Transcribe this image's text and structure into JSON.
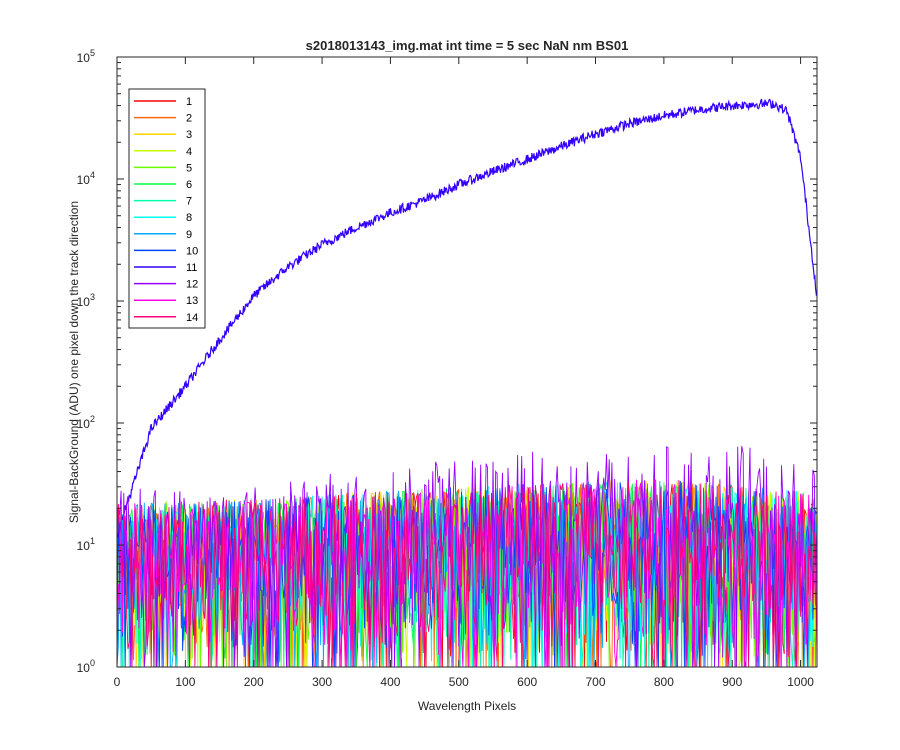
{
  "chart_data": {
    "type": "line",
    "title": "s2018013143_img.mat int time = 5 sec  NaN nm BS01",
    "xlabel": "Wavelength Pixels",
    "ylabel": "Signal-BackGround (ADU) one pixel down the track direction",
    "x_range": [
      0,
      1024
    ],
    "y_range": [
      1,
      100000
    ],
    "y_scale": "log",
    "grid": false,
    "legend_position": "top-left",
    "x_ticks": [
      {
        "v": 0,
        "label": "0"
      },
      {
        "v": 100,
        "label": "100"
      },
      {
        "v": 200,
        "label": "200"
      },
      {
        "v": 300,
        "label": "300"
      },
      {
        "v": 400,
        "label": "400"
      },
      {
        "v": 500,
        "label": "500"
      },
      {
        "v": 600,
        "label": "600"
      },
      {
        "v": 700,
        "label": "700"
      },
      {
        "v": 800,
        "label": "800"
      },
      {
        "v": 900,
        "label": "900"
      },
      {
        "v": 1000,
        "label": "1000"
      }
    ],
    "y_ticks": [
      {
        "v": 1,
        "base": "10",
        "exp": "0"
      },
      {
        "v": 10,
        "base": "10",
        "exp": "1"
      },
      {
        "v": 100,
        "base": "10",
        "exp": "2"
      },
      {
        "v": 1000,
        "base": "10",
        "exp": "3"
      },
      {
        "v": 10000,
        "base": "10",
        "exp": "4"
      },
      {
        "v": 100000,
        "base": "10",
        "exp": "5"
      }
    ],
    "series": [
      {
        "name": "1",
        "color": "#ff0000"
      },
      {
        "name": "2",
        "color": "#ff6a00"
      },
      {
        "name": "3",
        "color": "#ffd400"
      },
      {
        "name": "4",
        "color": "#c8ff00"
      },
      {
        "name": "5",
        "color": "#66ff00"
      },
      {
        "name": "6",
        "color": "#00ff44"
      },
      {
        "name": "7",
        "color": "#00ffaa"
      },
      {
        "name": "8",
        "color": "#00ffee"
      },
      {
        "name": "9",
        "color": "#00aaff"
      },
      {
        "name": "10",
        "color": "#0044ff"
      },
      {
        "name": "11",
        "color": "#3300ff",
        "profile": [
          [
            0,
            12
          ],
          [
            30,
            40
          ],
          [
            50,
            90
          ],
          [
            100,
            200
          ],
          [
            150,
            480
          ],
          [
            200,
            1100
          ],
          [
            250,
            1900
          ],
          [
            300,
            2900
          ],
          [
            350,
            4000
          ],
          [
            400,
            5300
          ],
          [
            450,
            6700
          ],
          [
            500,
            9000
          ],
          [
            550,
            11500
          ],
          [
            600,
            14500
          ],
          [
            650,
            18500
          ],
          [
            700,
            23500
          ],
          [
            750,
            28500
          ],
          [
            800,
            33000
          ],
          [
            850,
            37000
          ],
          [
            900,
            40000
          ],
          [
            930,
            41000
          ],
          [
            960,
            41500
          ],
          [
            980,
            36000
          ],
          [
            1000,
            15000
          ],
          [
            1010,
            5000
          ],
          [
            1024,
            1100
          ]
        ]
      },
      {
        "name": "12",
        "color": "#9900ff",
        "noise": [
          [
            0,
            30
          ],
          [
            200,
            32
          ],
          [
            400,
            45
          ],
          [
            600,
            58
          ],
          [
            800,
            65
          ],
          [
            900,
            70
          ],
          [
            1000,
            48
          ],
          [
            1024,
            40
          ]
        ]
      },
      {
        "name": "13",
        "color": "#ff00ee"
      },
      {
        "name": "14",
        "color": "#ff0077"
      }
    ],
    "noise_series_typical": [
      [
        0,
        22
      ],
      [
        200,
        24
      ],
      [
        400,
        28
      ],
      [
        600,
        32
      ],
      [
        800,
        35
      ],
      [
        1000,
        28
      ],
      [
        1024,
        25
      ]
    ]
  }
}
